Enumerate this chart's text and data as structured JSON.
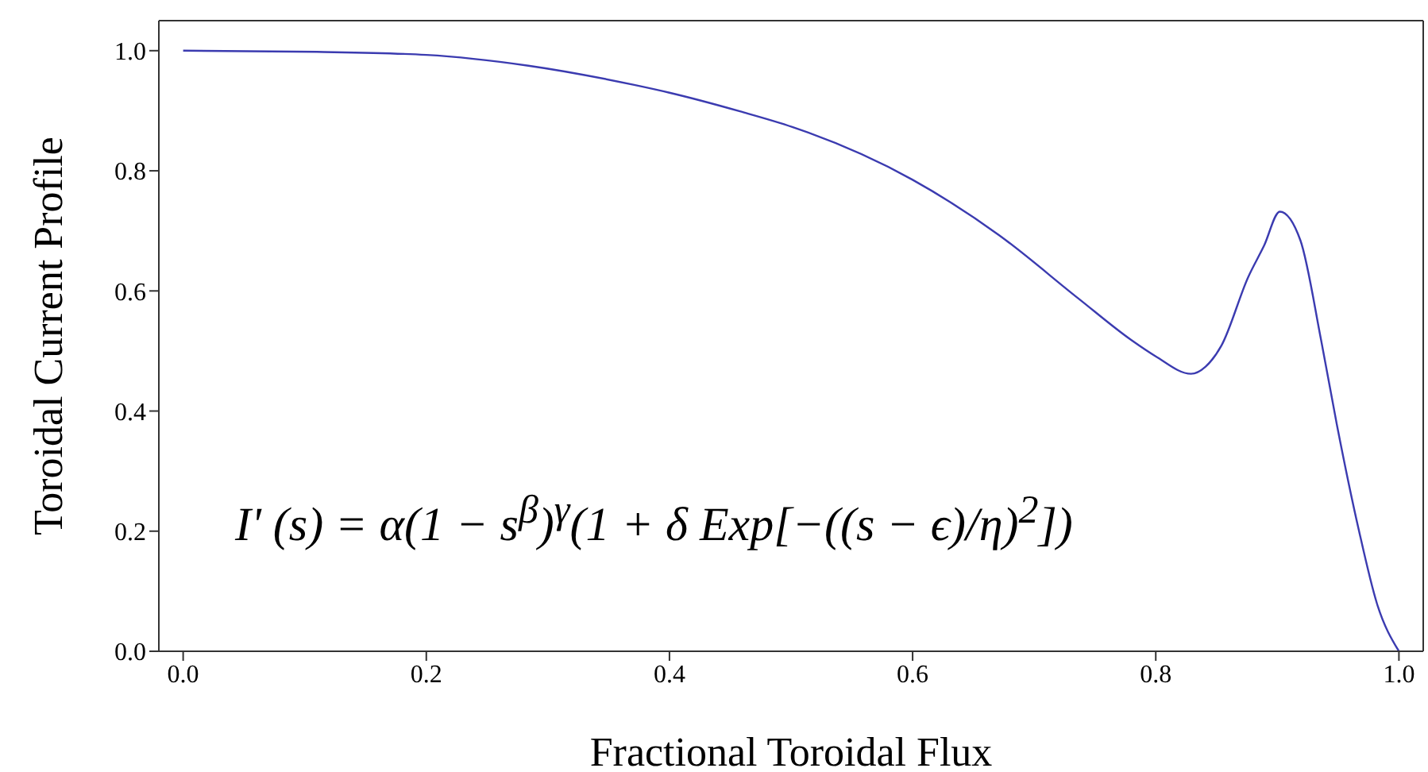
{
  "chart_data": {
    "type": "line",
    "xlabel": "Fractional Toroidal Flux",
    "ylabel": "Toroidal Current Profile",
    "annotations": [
      "I' (s) = α(1 − s$^{β}$)$^{γ}$(1 + δ Exp[−((s − ϵ)/η)$^{2}$])"
    ],
    "xlim": [
      -0.02,
      1.02
    ],
    "ylim": [
      0,
      1.05
    ],
    "xticks": [
      {
        "value": 0,
        "label": "0.0"
      },
      0.2,
      0.4,
      0.6,
      0.8,
      {
        "value": 1,
        "label": "1.0"
      }
    ],
    "yticks": [
      {
        "value": 0,
        "label": "0.0"
      },
      0.2,
      0.4,
      0.6,
      0.8,
      {
        "value": 1,
        "label": "1.0"
      }
    ],
    "marker": "none",
    "line_style": "solid",
    "series": [
      {
        "color": "#3b3bb0",
        "x": [
          0,
          0.11,
          0.2,
          0.284,
          0.371,
          0.4,
          0.458,
          0.501,
          0.6,
          0.671,
          0.736,
          0.78,
          0.8,
          0.829,
          0.841,
          0.854,
          0.876,
          0.889,
          0.902,
          0.919,
          0.936,
          0.949,
          0.967,
          0.982,
          1.0
        ],
        "values": [
          1,
          0.998,
          0.993,
          0.975,
          0.943,
          0.93,
          0.899,
          0.873,
          0.785,
          0.693,
          0.588,
          0.518,
          0.491,
          0.462,
          0.474,
          0.509,
          0.623,
          0.675,
          0.732,
          0.684,
          0.518,
          0.377,
          0.202,
          0.079,
          0
        ]
      }
    ]
  }
}
